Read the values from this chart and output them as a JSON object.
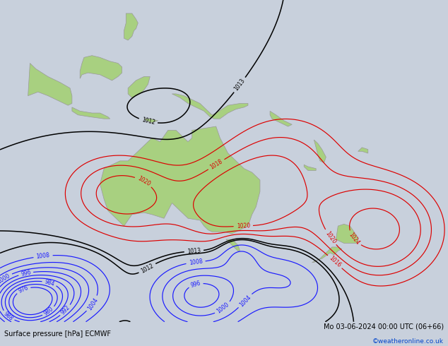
{
  "title_left": "Surface pressure [hPa] ECMWF",
  "title_right": "Mo 03-06-2024 00:00 UTC (06+66)",
  "copyright": "©weatheronline.co.uk",
  "bg_color": "#c8d0dc",
  "land_color": "#a8d080",
  "figure_width": 6.34,
  "figure_height": 4.9,
  "dpi": 100,
  "lon_min": 88,
  "lon_max": 200,
  "lat_min": -62,
  "lat_max": 22
}
